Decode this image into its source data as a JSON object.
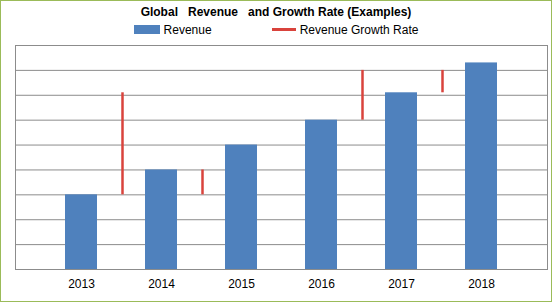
{
  "chart_data": {
    "type": "bar",
    "title": "Global   Revenue   and Growth Rate (Examples)",
    "categories": [
      "2013",
      "2014",
      "2015",
      "2016",
      "2017",
      "2018"
    ],
    "series": [
      {
        "name": "Revenue",
        "type": "bar",
        "color": "#4f81bd",
        "values": [
          3,
          4,
          5,
          6,
          7.1,
          8.3
        ]
      },
      {
        "name": "Revenue Growth Rate",
        "type": "range",
        "color": "#d9433c",
        "values": [
          [
            3,
            7.1
          ],
          [
            3,
            4
          ],
          null,
          [
            6,
            8
          ],
          [
            7.1,
            8
          ],
          null
        ]
      }
    ],
    "ylim": [
      0,
      9
    ],
    "yticks": [
      0,
      1,
      2,
      3,
      4,
      5,
      6,
      7,
      8,
      9
    ],
    "grid": true,
    "legend": "top",
    "tick_labels": "x"
  }
}
